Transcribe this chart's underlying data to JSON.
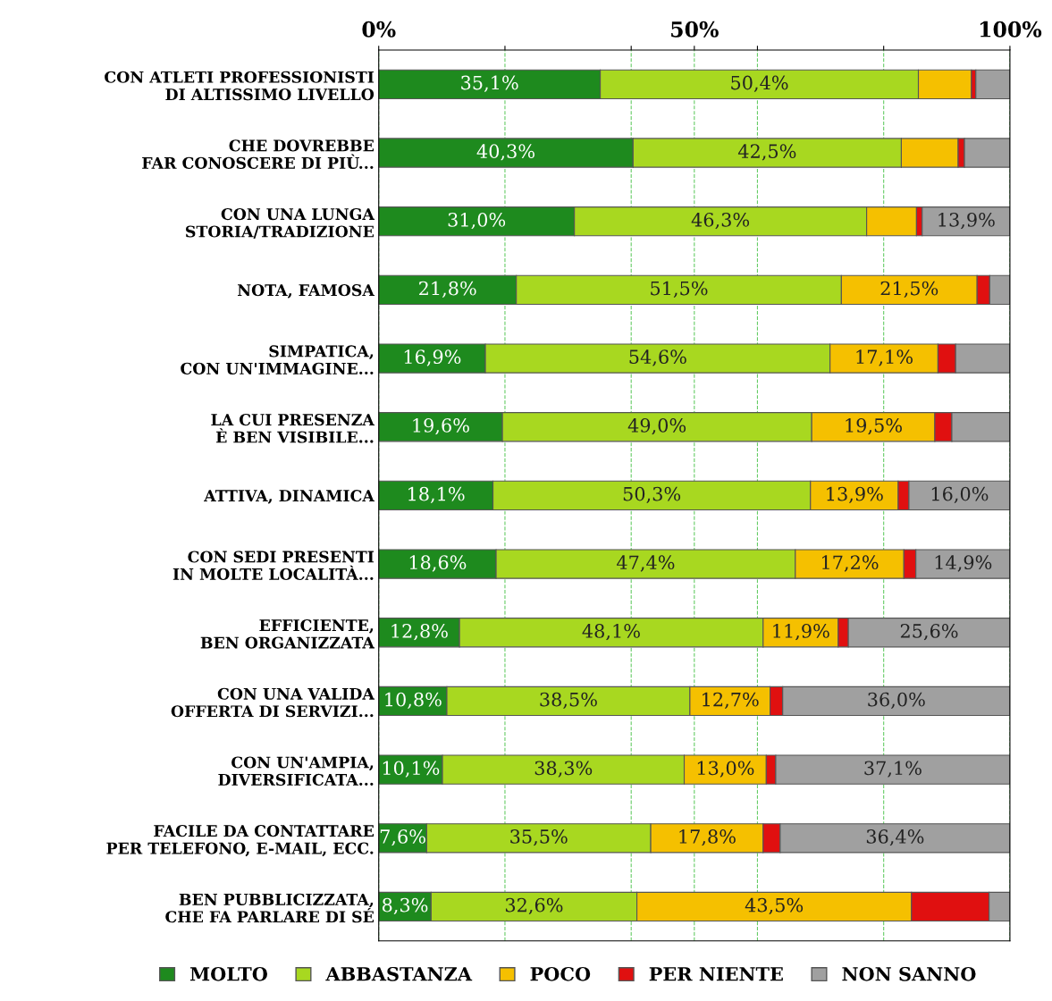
{
  "chart_data": {
    "type": "bar",
    "orientation": "horizontal",
    "stacked": true,
    "categories": [
      "CON ATLETI PROFESSIONISTI\nDI ALTISSIMO LIVELLO",
      "CHE DOVREBBE\nFAR CONOSCERE DI PIÙ...",
      "CON UNA LUNGA\nSTORIA/TRADIZIONE",
      "NOTA, FAMOSA",
      "SIMPATICA,\nCON UN'IMMAGINE...",
      "LA CUI PRESENZA\nÈ BEN VISIBILE...",
      "ATTIVA, DINAMICA",
      "CON SEDI PRESENTI\nIN MOLTE LOCALITÀ...",
      "EFFICIENTE,\nBEN ORGANIZZATA",
      "CON UNA VALIDA\nOFFERTA DI SERVIZI...",
      "CON UN'AMPIA,\nDIVERSIFICATA...",
      "FACILE DA CONTATTARE\nPER TELEFONO, E-MAIL, ECC.",
      "BEN PUBBLICIZZATA,\nCHE FA PARLARE DI SÉ"
    ],
    "series": [
      {
        "name": "MOLTO",
        "color": "#1e8a1e",
        "values": [
          35.1,
          40.3,
          31.0,
          21.8,
          16.9,
          19.6,
          18.1,
          18.6,
          12.8,
          10.8,
          10.1,
          7.6,
          8.3
        ],
        "value_labels": [
          "35,1%",
          "40,3%",
          "31,0%",
          "21,8%",
          "16,9%",
          "19,6%",
          "18,1%",
          "18,6%",
          "12,8%",
          "10,8%",
          "10,1%",
          "7,6%",
          "8,3%"
        ]
      },
      {
        "name": "ABBASTANZA",
        "color": "#a8d820",
        "values": [
          50.4,
          42.5,
          46.3,
          51.5,
          54.6,
          49.0,
          50.3,
          47.4,
          48.1,
          38.5,
          38.3,
          35.5,
          32.6
        ],
        "value_labels": [
          "50,4%",
          "42,5%",
          "46,3%",
          "51,5%",
          "54,6%",
          "49,0%",
          "50,3%",
          "47,4%",
          "48,1%",
          "38,5%",
          "38,3%",
          "35,5%",
          "32,6%"
        ]
      },
      {
        "name": "POCO",
        "color": "#f5c000",
        "values": [
          8.4,
          9.0,
          7.9,
          21.5,
          17.1,
          19.5,
          13.9,
          17.2,
          11.9,
          12.7,
          13.0,
          17.8,
          43.5
        ],
        "value_labels": [
          null,
          null,
          null,
          "21,5%",
          "17,1%",
          "19,5%",
          "13,9%",
          "17,2%",
          "11,9%",
          "12,7%",
          "13,0%",
          "17,8%",
          "43,5%"
        ]
      },
      {
        "name": "PER NIENTE",
        "color": "#e01010",
        "values": [
          0.7,
          1.0,
          0.9,
          2.0,
          2.8,
          2.7,
          1.7,
          1.9,
          1.6,
          2.0,
          1.5,
          2.7,
          12.3
        ],
        "value_labels": [
          null,
          null,
          null,
          null,
          null,
          null,
          null,
          null,
          null,
          null,
          null,
          null,
          null
        ]
      },
      {
        "name": "NON SANNO",
        "color": "#a0a0a0",
        "values": [
          5.4,
          7.2,
          13.9,
          3.2,
          8.6,
          9.2,
          16.0,
          14.9,
          25.6,
          36.0,
          37.1,
          36.4,
          3.3
        ],
        "value_labels": [
          null,
          null,
          "13,9%",
          null,
          null,
          null,
          "16,0%",
          "14,9%",
          "25,6%",
          "36,0%",
          "37,1%",
          "36,4%",
          null
        ]
      }
    ],
    "xlim": [
      0,
      100
    ],
    "xticks": [
      {
        "value": 0,
        "label": "0%"
      },
      {
        "value": 20,
        "label": null
      },
      {
        "value": 40,
        "label": null
      },
      {
        "value": 50,
        "label": "50%"
      },
      {
        "value": 60,
        "label": null
      },
      {
        "value": 80,
        "label": null
      },
      {
        "value": 100,
        "label": "100%"
      }
    ],
    "grid": "x",
    "legend": "bottom"
  }
}
